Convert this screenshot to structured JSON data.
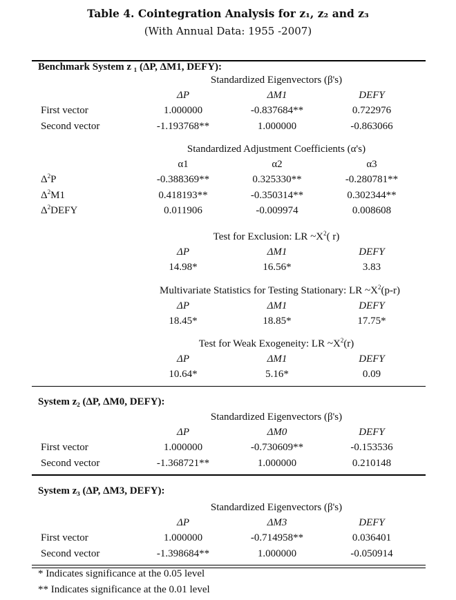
{
  "title": "Table 4.  Cointegration Analysis for z₁, z₂ and z₃",
  "subtitle": "(With Annual Data: 1955 -2007)",
  "systems": [
    {
      "heading": "Benchmark System z ₁ (ΔP, ΔM1, DEFY):",
      "blocks": [
        {
          "subtitle": "Standardized Eigenvectors (β's)",
          "headers": [
            "ΔP",
            "ΔM1",
            "DEFY"
          ],
          "italic_headers": true,
          "rows": [
            {
              "label": "First vector",
              "values": [
                "1.000000",
                "-0.837684**",
                "0.722976"
              ]
            },
            {
              "label": "Second vector",
              "values": [
                "-1.193768**",
                "1.000000",
                "-0.863066"
              ]
            }
          ]
        },
        {
          "subtitle": "Standardized Adjustment Coefficients (α's)",
          "headers": [
            "α1",
            "α2",
            "α3"
          ],
          "italic_headers": false,
          "rows": [
            {
              "label": "Δ²P",
              "values": [
                "-0.388369**",
                "0.325330**",
                "-0.280781**"
              ]
            },
            {
              "label": "Δ²M1",
              "values": [
                "0.418193**",
                "-0.350314**",
                "0.302344**"
              ]
            },
            {
              "label": "Δ²DEFY",
              "values": [
                "0.011906",
                "-0.009974",
                "0.008608"
              ]
            }
          ]
        },
        {
          "subtitle": "Test for Exclusion:  LR ~X²( r)",
          "headers": [
            "ΔP",
            "ΔM1",
            "DEFY"
          ],
          "italic_headers": true,
          "rows": [
            {
              "label": "",
              "values": [
                "14.98*",
                "16.56*",
                "3.83"
              ]
            }
          ]
        },
        {
          "subtitle": "Multivariate Statistics for Testing Stationary: LR ~X²(p-r)",
          "headers": [
            "ΔP",
            "ΔM1",
            "DEFY"
          ],
          "italic_headers": true,
          "rows": [
            {
              "label": "",
              "values": [
                "18.45*",
                "18.85*",
                "17.75*"
              ]
            }
          ]
        },
        {
          "subtitle": "Test for Weak Exogeneity: LR ~X²(r)",
          "headers": [
            "ΔP",
            "ΔM1",
            "DEFY"
          ],
          "italic_headers": true,
          "rows": [
            {
              "label": "",
              "values": [
                "10.64*",
                "5.16*",
                "0.09"
              ]
            }
          ]
        }
      ]
    },
    {
      "heading": "System z₂ (ΔP, ΔM0, DEFY):",
      "blocks": [
        {
          "subtitle": "Standardized Eigenvectors (β's)",
          "headers": [
            "ΔP",
            "ΔM0",
            "DEFY"
          ],
          "italic_headers": true,
          "rows": [
            {
              "label": "First vector",
              "values": [
                "1.000000",
                "-0.730609**",
                "-0.153536"
              ]
            },
            {
              "label": "Second vector",
              "values": [
                "-1.368721**",
                "1.000000",
                "0.210148"
              ]
            }
          ]
        }
      ]
    },
    {
      "heading": "System z₃ (ΔP, ΔM3, DEFY):",
      "blocks": [
        {
          "subtitle": "Standardized Eigenvectors (β's)",
          "headers": [
            "ΔP",
            "ΔM3",
            "DEFY"
          ],
          "italic_headers": true,
          "rows": [
            {
              "label": "First vector",
              "values": [
                "1.000000",
                "-0.714958**",
                "0.036401"
              ]
            },
            {
              "label": "Second vector",
              "values": [
                "-1.398684**",
                "1.000000",
                "-0.050914"
              ]
            }
          ]
        }
      ]
    }
  ],
  "footnotes": [
    "* Indicates significance at the 0.05 level",
    "** Indicates significance at the 0.01 level"
  ]
}
